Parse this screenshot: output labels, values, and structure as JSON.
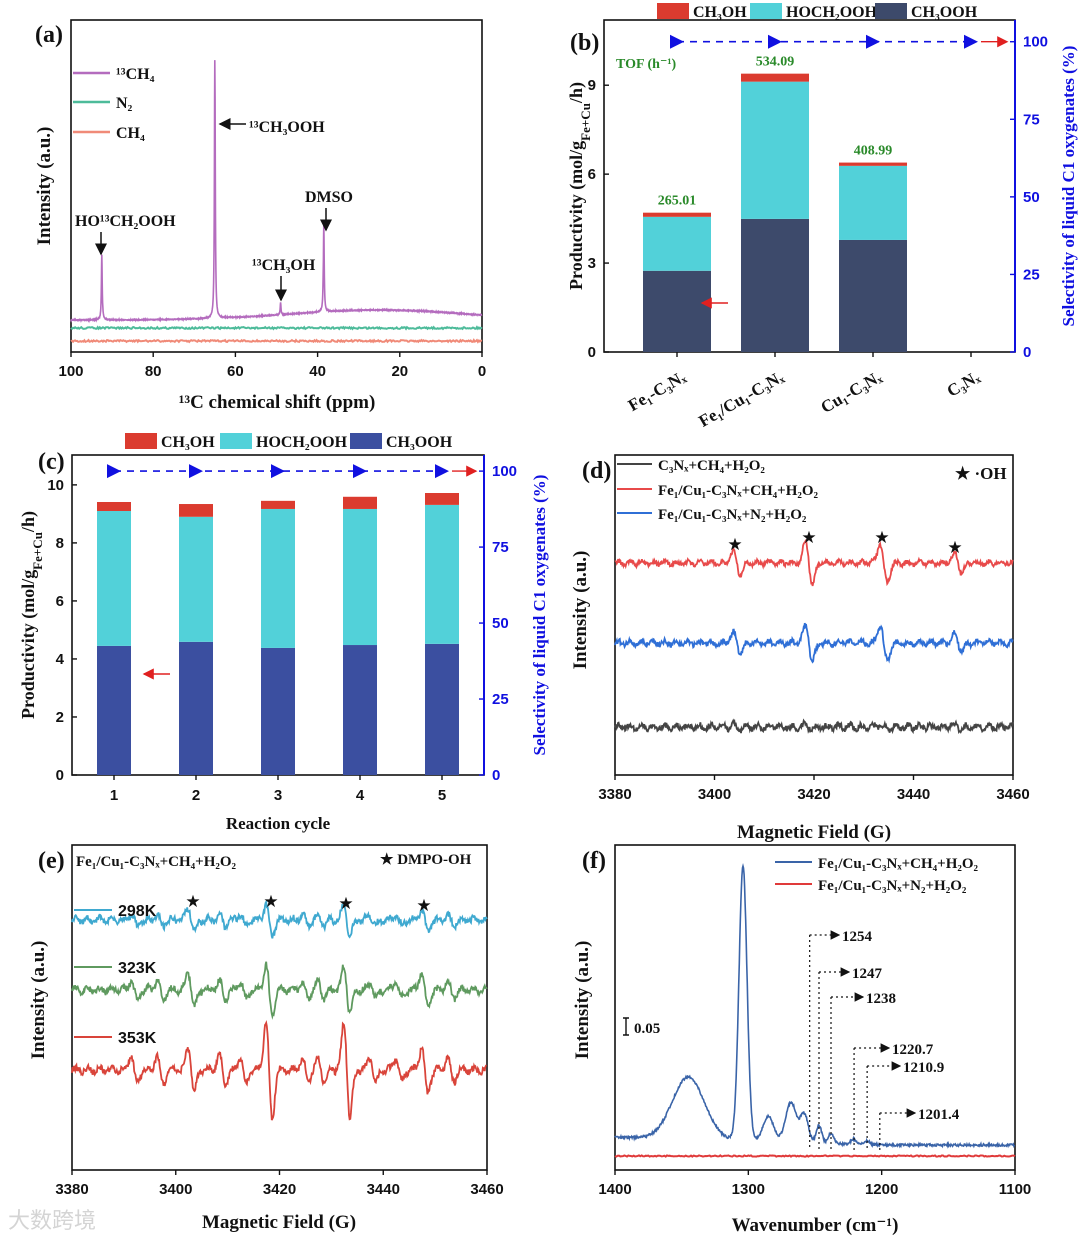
{
  "figure": {
    "watermark": "大数跨境"
  },
  "chart_data": [
    {
      "panel": "(a)",
      "type": "line",
      "xlabel": "¹³C chemical shift (ppm)",
      "ylabel": "Intensity (a.u.)",
      "xlim": [
        100,
        0
      ],
      "xticks": [
        100,
        80,
        60,
        40,
        20,
        0
      ],
      "legend": [
        {
          "name": "¹³CH₄",
          "color": "#b46cbe"
        },
        {
          "name": "N₂",
          "color": "#4dbb9a"
        },
        {
          "name": "CH₄",
          "color": "#f08a78"
        }
      ],
      "peaks": [
        {
          "ppm": 92.5,
          "label": "HO¹³CH₂OOH"
        },
        {
          "ppm": 65,
          "label": "¹³CH₃OOH"
        },
        {
          "ppm": 49,
          "label": "¹³CH₃OH"
        },
        {
          "ppm": 38.5,
          "label": "DMSO"
        }
      ]
    },
    {
      "panel": "(b)",
      "type": "bar",
      "stacked": true,
      "categories": [
        "Fe₁-C₃Nₓ",
        "Fe₁/Cu₁-C₃Nₓ",
        "Cu₁-C₃Nₓ",
        "C₃Nₓ"
      ],
      "series": [
        {
          "name": "CH₃OOH",
          "color": "#3d4a6b",
          "values": [
            2.74,
            4.49,
            3.78,
            0
          ]
        },
        {
          "name": "HOCH₂OOH",
          "color": "#52d1d9",
          "values": [
            1.82,
            4.63,
            2.5,
            0
          ]
        },
        {
          "name": "CH₃OH",
          "color": "#db3b2f",
          "values": [
            0.14,
            0.27,
            0.11,
            0
          ]
        }
      ],
      "legend_order": [
        "CH₃OH",
        "HOCH₂OOH",
        "CH₃OOH"
      ],
      "ylabel_parts": [
        "Productivity (mol/g",
        "Fe+Cu",
        "/h)"
      ],
      "ylim": [
        0,
        11.2
      ],
      "yticks": [
        0,
        3,
        6,
        9
      ],
      "y2label": "Selectivity of liquid C1 oxygenates (%)",
      "y2lim": [
        0,
        107
      ],
      "y2ticks": [
        0,
        25,
        50,
        75,
        100
      ],
      "selectivity": [
        100,
        100,
        100,
        100
      ],
      "tof_title": "TOF (h⁻¹)",
      "tof": [
        "265.01",
        "534.09",
        "408.99",
        ""
      ]
    },
    {
      "panel": "(c)",
      "type": "bar",
      "stacked": true,
      "categories": [
        "1",
        "2",
        "3",
        "4",
        "5"
      ],
      "xlabel": "Reaction cycle",
      "series": [
        {
          "name": "CH₃OOH",
          "color": "#3b4fa0",
          "values": [
            4.45,
            4.59,
            4.38,
            4.48,
            4.52
          ]
        },
        {
          "name": "HOCH₂OOH",
          "color": "#52d1d9",
          "values": [
            4.65,
            4.31,
            4.79,
            4.69,
            4.79
          ]
        },
        {
          "name": "CH₃OH",
          "color": "#db3b2f",
          "values": [
            0.31,
            0.44,
            0.28,
            0.42,
            0.41
          ]
        }
      ],
      "legend_order": [
        "CH₃OH",
        "HOCH₂OOH",
        "CH₃OOH"
      ],
      "ylabel_parts": [
        "Productivity (mol/g",
        "Fe+Cu",
        "/h)"
      ],
      "ylim": [
        0,
        11.03
      ],
      "yticks": [
        0,
        2,
        4,
        6,
        8,
        10
      ],
      "y2label": "Selectivity of liquid C1 oxygenates (%)",
      "y2lim": [
        0,
        105.3
      ],
      "y2ticks": [
        0,
        25,
        50,
        75,
        100
      ],
      "selectivity": [
        100,
        100,
        100,
        100,
        100
      ]
    },
    {
      "panel": "(d)",
      "type": "line",
      "xlabel": "Magnetic Field (G)",
      "ylabel": "Intensity (a.u.)",
      "xlim": [
        3380,
        3460
      ],
      "xticks": [
        3380,
        3400,
        3420,
        3440,
        3460
      ],
      "marker_label": "★ ·OH",
      "peaks": [
        3404.5,
        3419,
        3434,
        3449
      ],
      "series": [
        {
          "name": "C₃Nₓ+CH₄+H₂O₂",
          "color": "#444444"
        },
        {
          "name": "Fe₁/Cu₁-C₃Nₓ+CH₄+H₂O₂",
          "color": "#e84a4a"
        },
        {
          "name": "Fe₁/Cu₁-C₃Nₓ+N₂+H₂O₂",
          "color": "#2f6fd6"
        }
      ]
    },
    {
      "panel": "(e)",
      "type": "line",
      "title": "Fe₁/Cu₁-C₃Nₓ+CH₄+H₂O₂",
      "xlabel": "Magnetic Field (G)",
      "ylabel": "Intensity (a.u.)",
      "xlim": [
        3380,
        3460
      ],
      "xticks": [
        3380,
        3400,
        3420,
        3440,
        3460
      ],
      "marker_label": "★ DMPO-OH",
      "peaks": [
        3403,
        3418,
        3433,
        3448
      ],
      "series": [
        {
          "name": "298K",
          "color": "#3fa9d0"
        },
        {
          "name": "323K",
          "color": "#5f9a5f"
        },
        {
          "name": "353K",
          "color": "#d9443a"
        }
      ]
    },
    {
      "panel": "(f)",
      "type": "line",
      "xlabel": "Wavenumber (cm⁻¹)",
      "ylabel": "Intensity (a.u.)",
      "xlim": [
        1400,
        1100
      ],
      "xticks": [
        1400,
        1300,
        1200,
        1100
      ],
      "scale_bar": "0.05",
      "series": [
        {
          "name": "Fe₁/Cu₁-C₃Nₓ+CH₄+H₂O₂",
          "color": "#3a64a8"
        },
        {
          "name": "Fe₁/Cu₁-C₃Nₓ+N₂+H₂O₂",
          "color": "#e03a3a"
        }
      ],
      "annotations": [
        "1254",
        "1247",
        "1238",
        "1220.7",
        "1210.9",
        "1201.4"
      ]
    }
  ]
}
